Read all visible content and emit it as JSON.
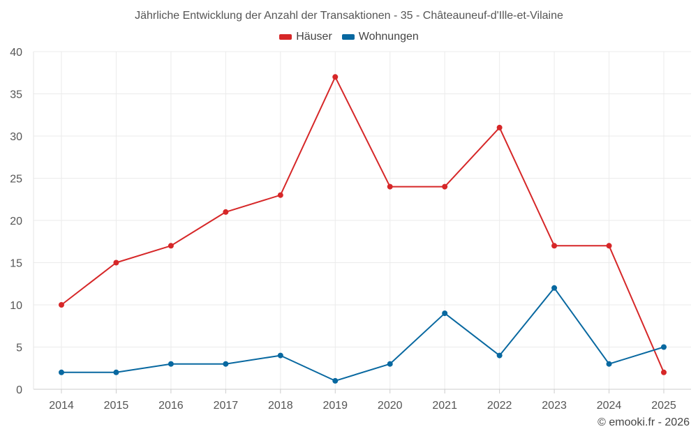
{
  "chart_data": {
    "type": "line",
    "title": "Jährliche Entwicklung der Anzahl der Transaktionen - 35 - Châteauneuf-d'Ille-et-Vilaine",
    "categories": [
      "2014",
      "2015",
      "2016",
      "2017",
      "2018",
      "2019",
      "2020",
      "2021",
      "2022",
      "2023",
      "2024",
      "2025"
    ],
    "series": [
      {
        "name": "Häuser",
        "color": "#d62728",
        "values": [
          10,
          15,
          17,
          21,
          23,
          37,
          24,
          24,
          31,
          17,
          17,
          2
        ]
      },
      {
        "name": "Wohnungen",
        "color": "#0868a0",
        "values": [
          2,
          2,
          3,
          3,
          4,
          1,
          3,
          9,
          4,
          12,
          3,
          5
        ]
      }
    ],
    "yticks": [
      0,
      5,
      10,
      15,
      20,
      25,
      30,
      35,
      40
    ],
    "ylim": [
      0,
      40
    ],
    "xlabel": "",
    "ylabel": "",
    "grid": true,
    "legend_position": "top-center"
  },
  "credit": "© emooki.fr - 2026"
}
